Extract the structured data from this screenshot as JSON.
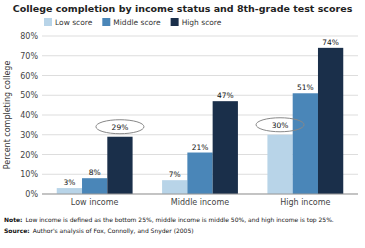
{
  "chart_data": {
    "type": "bar",
    "title": "College completion by income status and 8th-grade test scores",
    "y_label": "Percent completing college",
    "categories": [
      "Low income",
      "Middle income",
      "High income"
    ],
    "series": [
      {
        "name": "Low score",
        "color": "#b8d4e8",
        "values": [
          3,
          7,
          30
        ],
        "value_labels": [
          "3%",
          "7%",
          null
        ]
      },
      {
        "name": "Middle score",
        "color": "#4a86b8",
        "values": [
          8,
          21,
          51
        ],
        "value_labels": [
          "8%",
          "21%",
          "51%"
        ]
      },
      {
        "name": "High score",
        "color": "#1a2f4a",
        "values": [
          29,
          47,
          74
        ],
        "value_labels": [
          null,
          "47%",
          "74%"
        ]
      }
    ],
    "ylim": [
      0,
      80
    ],
    "yticks": [
      {
        "value": 0,
        "label": "0%"
      },
      {
        "value": 10,
        "label": "10%"
      },
      {
        "value": 20,
        "label": "20%"
      },
      {
        "value": 30,
        "label": "30%"
      },
      {
        "value": 40,
        "label": "40%"
      },
      {
        "value": 50,
        "label": "50%"
      },
      {
        "value": 60,
        "label": "60%"
      },
      {
        "value": 70,
        "label": "70%"
      },
      {
        "value": 80,
        "label": "80%"
      }
    ],
    "grid": true,
    "legend": "upper left",
    "data_labels": true,
    "annotations": [
      {
        "category": "Low income",
        "series": "High score",
        "text": "29%"
      },
      {
        "category": "High income",
        "series": "Low score",
        "text": "30%"
      }
    ],
    "notes": [
      {
        "label": "Note:",
        "text": "Low income is defined as the bottom 25%, middle income is middle 50%, and high income is top 25%."
      },
      {
        "label": "Source:",
        "text": "Author's analysis of Fox, Connolly, and Snyder (2005)"
      }
    ]
  }
}
